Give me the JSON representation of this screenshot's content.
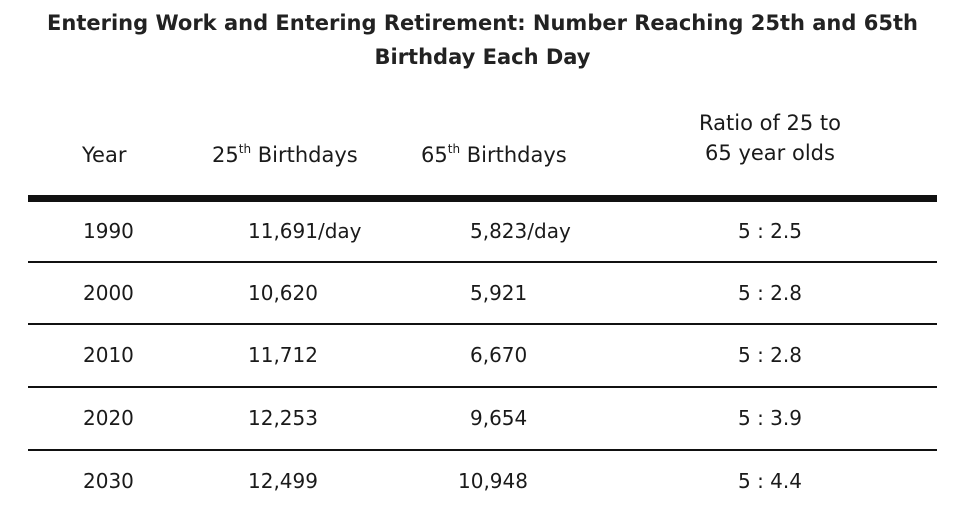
{
  "chart_data": {
    "type": "table",
    "title": "Entering Work and Entering Retirement: Number Reaching 25th and 65th Birthday Each Day",
    "columns": [
      {
        "base": "Year",
        "sup": ""
      },
      {
        "base": "25",
        "sup": "th",
        "rest": " Birthdays"
      },
      {
        "base": "65",
        "sup": "th",
        "rest": " Birthdays"
      },
      {
        "line1": "Ratio of 25 to",
        "line2": "65 year olds"
      }
    ],
    "rows": [
      {
        "year": "1990",
        "b25": "11,691/day",
        "b65": "5,823/day",
        "ratio": "5 : 2.5"
      },
      {
        "year": "2000",
        "b25": "10,620",
        "b65": "5,921",
        "ratio": "5 : 2.8"
      },
      {
        "year": "2010",
        "b25": "11,712",
        "b65": "6,670",
        "ratio": "5 : 2.8"
      },
      {
        "year": "2020",
        "b25": "12,253",
        "b65": "9,654",
        "ratio": "5 : 3.9"
      },
      {
        "year": "2030",
        "b25": "12,499",
        "b65": "10,948",
        "ratio": "5 : 4.4"
      }
    ]
  },
  "title_lines": [
    "Entering Work and Entering Retirement: Number Reaching 25th and 65th",
    "Birthday Each Day"
  ]
}
